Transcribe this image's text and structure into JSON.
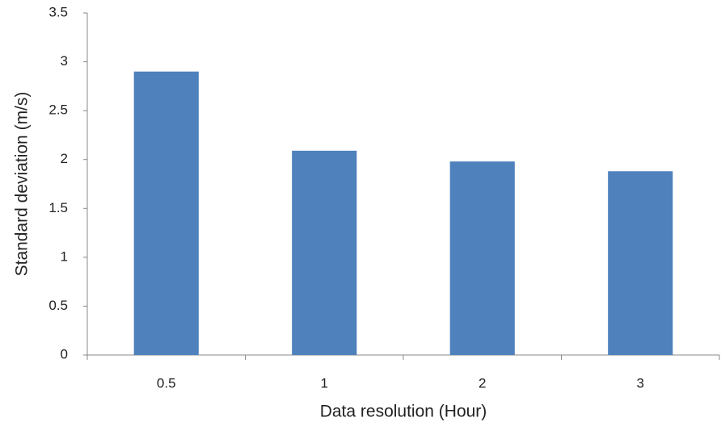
{
  "chart_data": {
    "type": "bar",
    "x_label": "Data resolution (Hour)",
    "y_label": "Standard deviation (m/s)",
    "categories": [
      "0.5",
      "1",
      "2",
      "3"
    ],
    "values": [
      2.9,
      2.09,
      1.98,
      1.88
    ],
    "color": "#4f81bd",
    "ylim": [
      0,
      3.5
    ],
    "yticks": [
      0,
      0.5,
      1,
      1.5,
      2,
      2.5,
      3,
      3.5
    ],
    "grid": false
  }
}
